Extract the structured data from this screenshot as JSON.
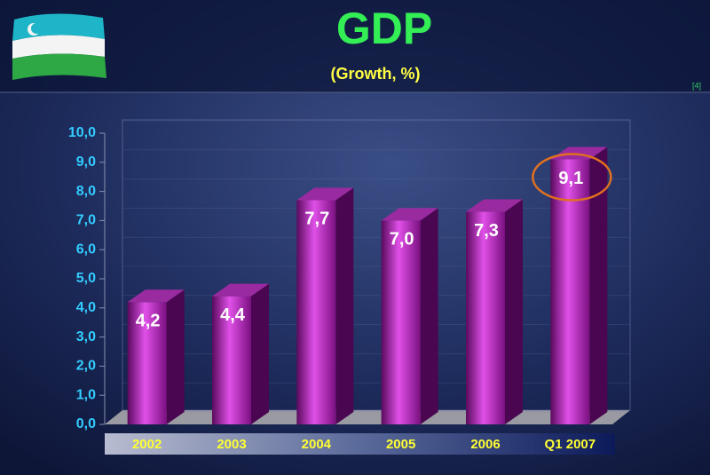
{
  "chart_data": {
    "type": "bar",
    "title": "GDP",
    "subtitle": "(Growth, %)",
    "annotation": "[4]",
    "categories": [
      "2002",
      "2003",
      "2004",
      "2005",
      "2006",
      "Q1 2007"
    ],
    "values": [
      4.2,
      4.4,
      7.7,
      7.0,
      7.3,
      9.1
    ],
    "value_labels": [
      "4,2",
      "4,4",
      "7,7",
      "7,0",
      "7,3",
      "9,1"
    ],
    "color": "#b020b0",
    "ylim": [
      0,
      10
    ],
    "yticks": [
      {
        "value": 0,
        "label": "0,0"
      },
      {
        "value": 1,
        "label": "1,0"
      },
      {
        "value": 2,
        "label": "2,0"
      },
      {
        "value": 3,
        "label": "3,0"
      },
      {
        "value": 4,
        "label": "4,0"
      },
      {
        "value": 5,
        "label": "5,0"
      },
      {
        "value": 6,
        "label": "6,0"
      },
      {
        "value": 7,
        "label": "7,0"
      },
      {
        "value": 8,
        "label": "8,0"
      },
      {
        "value": 9,
        "label": "9,0"
      },
      {
        "value": 10,
        "label": "10,0"
      }
    ],
    "grid": true
  }
}
